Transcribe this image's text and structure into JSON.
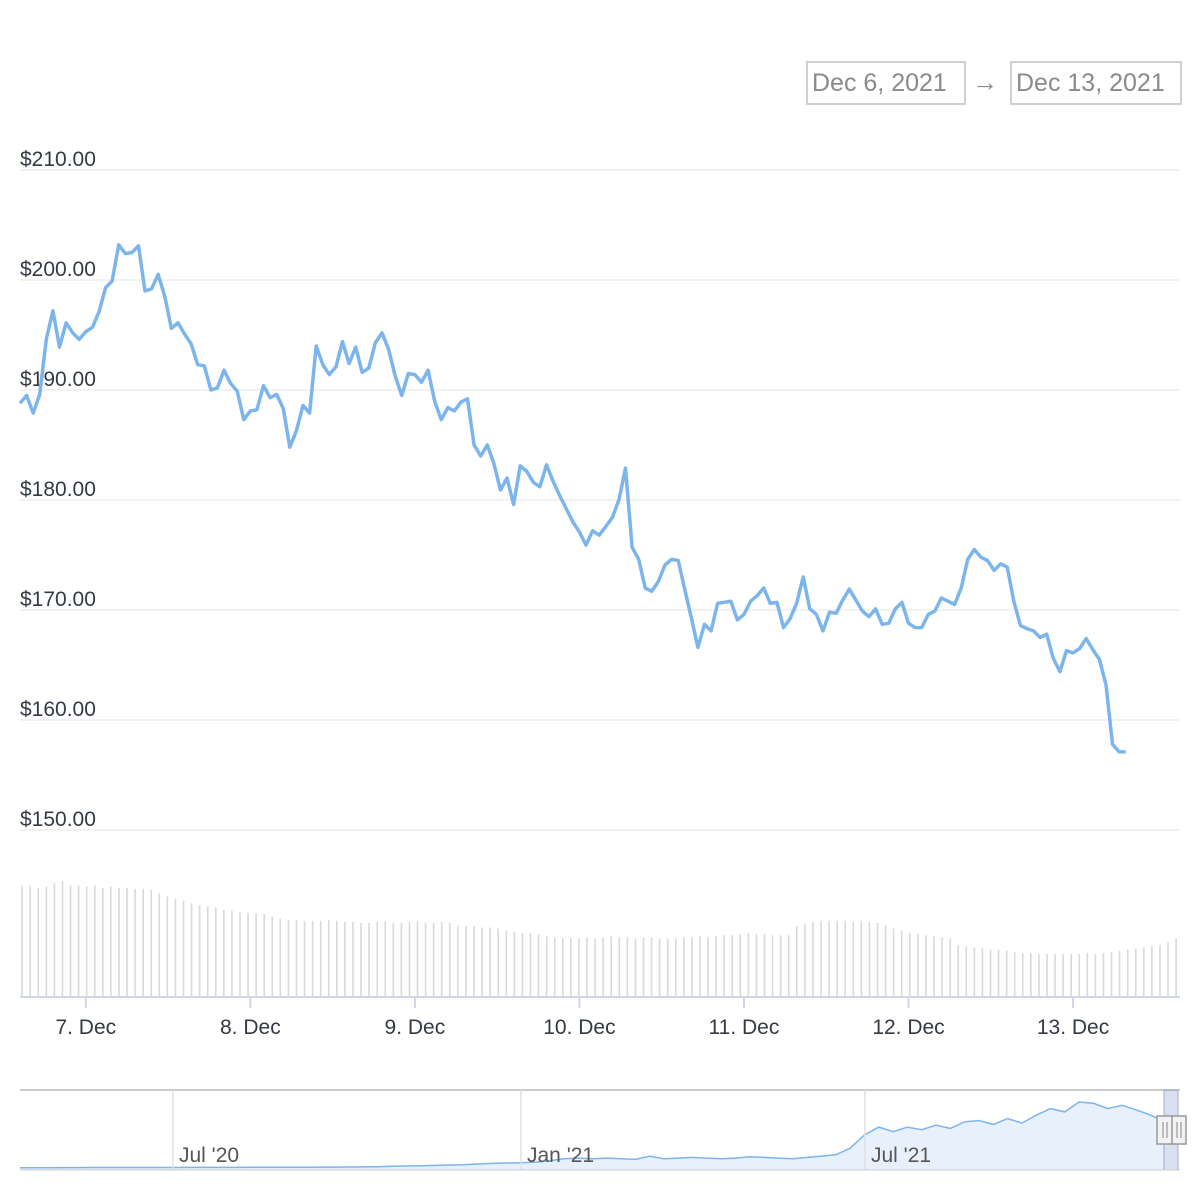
{
  "range_selector": {
    "from": "Dec 6, 2021",
    "arrow": "→",
    "to": "Dec 13, 2021"
  },
  "colors": {
    "line": "#7cb5ec",
    "grid": "#e6e6e6",
    "volume": "#d9d9d9",
    "navigator_fill": "#e8f1fb"
  },
  "chart_data": {
    "type": "line",
    "title": "",
    "xlabel": "",
    "ylabel": "",
    "ylim": [
      150,
      210
    ],
    "y_ticks": [
      "$150.00",
      "$160.00",
      "$170.00",
      "$180.00",
      "$190.00",
      "$200.00",
      "$210.00"
    ],
    "y_tick_values": [
      150,
      160,
      170,
      180,
      190,
      200,
      210
    ],
    "x_range_days": [
      6.6,
      13.65
    ],
    "x_ticks": [
      {
        "label": "7. Dec",
        "day": 7
      },
      {
        "label": "8. Dec",
        "day": 8
      },
      {
        "label": "9. Dec",
        "day": 9
      },
      {
        "label": "10. Dec",
        "day": 10
      },
      {
        "label": "11. Dec",
        "day": 11
      },
      {
        "label": "12. Dec",
        "day": 12
      },
      {
        "label": "13. Dec",
        "day": 13
      }
    ],
    "series": [
      {
        "values": [
          [
            6.6,
            188.8
          ],
          [
            6.64,
            189.5
          ],
          [
            6.68,
            187.9
          ],
          [
            6.72,
            189.6
          ],
          [
            6.76,
            194.6
          ],
          [
            6.8,
            197.2
          ],
          [
            6.84,
            193.9
          ],
          [
            6.88,
            196.1
          ],
          [
            6.92,
            195.2
          ],
          [
            6.96,
            194.6
          ],
          [
            7.0,
            195.3
          ],
          [
            7.04,
            195.7
          ],
          [
            7.08,
            197.1
          ],
          [
            7.12,
            199.3
          ],
          [
            7.16,
            199.9
          ],
          [
            7.2,
            203.2
          ],
          [
            7.24,
            202.4
          ],
          [
            7.28,
            202.5
          ],
          [
            7.32,
            203.1
          ],
          [
            7.36,
            199.0
          ],
          [
            7.4,
            199.2
          ],
          [
            7.44,
            200.5
          ],
          [
            7.48,
            198.5
          ],
          [
            7.52,
            195.6
          ],
          [
            7.56,
            196.1
          ],
          [
            7.6,
            195.1
          ],
          [
            7.64,
            194.2
          ],
          [
            7.68,
            192.3
          ],
          [
            7.72,
            192.2
          ],
          [
            7.76,
            190.0
          ],
          [
            7.8,
            190.2
          ],
          [
            7.84,
            191.8
          ],
          [
            7.88,
            190.6
          ],
          [
            7.92,
            189.9
          ],
          [
            7.96,
            187.3
          ],
          [
            8.0,
            188.1
          ],
          [
            8.04,
            188.2
          ],
          [
            8.08,
            190.4
          ],
          [
            8.12,
            189.3
          ],
          [
            8.16,
            189.6
          ],
          [
            8.2,
            188.3
          ],
          [
            8.24,
            184.8
          ],
          [
            8.28,
            186.3
          ],
          [
            8.32,
            188.6
          ],
          [
            8.36,
            187.9
          ],
          [
            8.4,
            194.0
          ],
          [
            8.44,
            192.3
          ],
          [
            8.48,
            191.4
          ],
          [
            8.52,
            192.1
          ],
          [
            8.56,
            194.4
          ],
          [
            8.6,
            192.4
          ],
          [
            8.64,
            193.9
          ],
          [
            8.68,
            191.6
          ],
          [
            8.72,
            192.0
          ],
          [
            8.76,
            194.3
          ],
          [
            8.8,
            195.2
          ],
          [
            8.84,
            193.7
          ],
          [
            8.88,
            191.3
          ],
          [
            8.92,
            189.5
          ],
          [
            8.96,
            191.5
          ],
          [
            9.0,
            191.4
          ],
          [
            9.04,
            190.7
          ],
          [
            9.08,
            191.8
          ],
          [
            9.12,
            189.0
          ],
          [
            9.16,
            187.3
          ],
          [
            9.2,
            188.4
          ],
          [
            9.24,
            188.1
          ],
          [
            9.28,
            188.9
          ],
          [
            9.32,
            189.2
          ],
          [
            9.36,
            185.0
          ],
          [
            9.4,
            184.0
          ],
          [
            9.44,
            185.0
          ],
          [
            9.48,
            183.3
          ],
          [
            9.52,
            180.9
          ],
          [
            9.56,
            182.0
          ],
          [
            9.6,
            179.6
          ],
          [
            9.64,
            183.1
          ],
          [
            9.68,
            182.6
          ],
          [
            9.72,
            181.6
          ],
          [
            9.76,
            181.2
          ],
          [
            9.8,
            183.2
          ],
          [
            9.84,
            181.7
          ],
          [
            9.88,
            180.4
          ],
          [
            9.92,
            179.2
          ],
          [
            9.96,
            178.0
          ],
          [
            10.0,
            177.1
          ],
          [
            10.04,
            175.9
          ],
          [
            10.08,
            177.2
          ],
          [
            10.12,
            176.8
          ],
          [
            10.16,
            177.6
          ],
          [
            10.2,
            178.4
          ],
          [
            10.24,
            180.0
          ],
          [
            10.28,
            182.9
          ],
          [
            10.32,
            175.7
          ],
          [
            10.36,
            174.6
          ],
          [
            10.4,
            172.0
          ],
          [
            10.44,
            171.7
          ],
          [
            10.48,
            172.6
          ],
          [
            10.52,
            174.1
          ],
          [
            10.56,
            174.6
          ],
          [
            10.6,
            174.5
          ],
          [
            10.64,
            171.9
          ],
          [
            10.68,
            169.3
          ],
          [
            10.72,
            166.6
          ],
          [
            10.76,
            168.7
          ],
          [
            10.8,
            168.1
          ],
          [
            10.84,
            170.6
          ],
          [
            10.88,
            170.7
          ],
          [
            10.92,
            170.8
          ],
          [
            10.96,
            169.1
          ],
          [
            11.0,
            169.6
          ],
          [
            11.04,
            170.8
          ],
          [
            11.08,
            171.3
          ],
          [
            11.12,
            172.0
          ],
          [
            11.16,
            170.6
          ],
          [
            11.2,
            170.7
          ],
          [
            11.24,
            168.4
          ],
          [
            11.28,
            169.2
          ],
          [
            11.32,
            170.6
          ],
          [
            11.36,
            173.0
          ],
          [
            11.4,
            170.1
          ],
          [
            11.44,
            169.6
          ],
          [
            11.48,
            168.1
          ],
          [
            11.52,
            169.8
          ],
          [
            11.56,
            169.7
          ],
          [
            11.6,
            170.9
          ],
          [
            11.64,
            171.9
          ],
          [
            11.68,
            170.9
          ],
          [
            11.72,
            169.9
          ],
          [
            11.76,
            169.4
          ],
          [
            11.8,
            170.1
          ],
          [
            11.84,
            168.7
          ],
          [
            11.88,
            168.8
          ],
          [
            11.92,
            170.1
          ],
          [
            11.96,
            170.7
          ],
          [
            12.0,
            168.8
          ],
          [
            12.04,
            168.4
          ],
          [
            12.08,
            168.4
          ],
          [
            12.12,
            169.6
          ],
          [
            12.16,
            169.9
          ],
          [
            12.2,
            171.1
          ],
          [
            12.24,
            170.8
          ],
          [
            12.28,
            170.5
          ],
          [
            12.32,
            172.0
          ],
          [
            12.36,
            174.6
          ],
          [
            12.4,
            175.5
          ],
          [
            12.44,
            174.8
          ],
          [
            12.48,
            174.5
          ],
          [
            12.52,
            173.6
          ],
          [
            12.56,
            174.2
          ],
          [
            12.6,
            173.9
          ],
          [
            12.64,
            170.8
          ],
          [
            12.68,
            168.6
          ],
          [
            12.72,
            168.3
          ],
          [
            12.76,
            168.1
          ],
          [
            12.8,
            167.5
          ],
          [
            12.84,
            167.8
          ],
          [
            12.88,
            165.6
          ],
          [
            12.92,
            164.4
          ],
          [
            12.96,
            166.3
          ],
          [
            13.0,
            166.1
          ],
          [
            13.04,
            166.5
          ],
          [
            13.08,
            167.4
          ],
          [
            13.12,
            166.4
          ],
          [
            13.16,
            165.5
          ],
          [
            13.2,
            163.2
          ],
          [
            13.24,
            157.8
          ],
          [
            13.28,
            157.1
          ],
          [
            13.32,
            157.1
          ]
        ]
      }
    ],
    "volume_bars": {
      "count": 144,
      "relative_heights": [
        1.0,
        1.0,
        0.98,
        0.99,
        1.02,
        1.04,
        1.0,
        1.0,
        0.99,
        1.0,
        0.98,
        0.99,
        0.98,
        0.98,
        0.97,
        0.97,
        0.96,
        0.93,
        0.9,
        0.88,
        0.86,
        0.84,
        0.82,
        0.81,
        0.8,
        0.78,
        0.77,
        0.76,
        0.75,
        0.75,
        0.74,
        0.72,
        0.7,
        0.69,
        0.69,
        0.68,
        0.68,
        0.68,
        0.69,
        0.68,
        0.67,
        0.67,
        0.66,
        0.66,
        0.67,
        0.68,
        0.66,
        0.66,
        0.67,
        0.68,
        0.66,
        0.66,
        0.67,
        0.66,
        0.64,
        0.63,
        0.63,
        0.62,
        0.62,
        0.61,
        0.59,
        0.58,
        0.57,
        0.57,
        0.56,
        0.54,
        0.53,
        0.52,
        0.52,
        0.52,
        0.53,
        0.52,
        0.53,
        0.54,
        0.53,
        0.53,
        0.52,
        0.53,
        0.53,
        0.52,
        0.52,
        0.52,
        0.53,
        0.53,
        0.54,
        0.53,
        0.54,
        0.55,
        0.55,
        0.56,
        0.57,
        0.56,
        0.56,
        0.55,
        0.55,
        0.55,
        0.63,
        0.65,
        0.67,
        0.68,
        0.68,
        0.68,
        0.68,
        0.67,
        0.68,
        0.67,
        0.66,
        0.64,
        0.61,
        0.59,
        0.57,
        0.56,
        0.55,
        0.54,
        0.53,
        0.52,
        0.46,
        0.45,
        0.44,
        0.43,
        0.42,
        0.42,
        0.41,
        0.4,
        0.39,
        0.39,
        0.38,
        0.38,
        0.38,
        0.38,
        0.38,
        0.38,
        0.39,
        0.38,
        0.39,
        0.4,
        0.41,
        0.42,
        0.43,
        0.44,
        0.45,
        0.46,
        0.49,
        0.52
      ]
    },
    "navigator": {
      "x_ticks": [
        "Jul '20",
        "Jan '21",
        "Jul '21"
      ],
      "series_values": [
        0.005,
        0.005,
        0.005,
        0.006,
        0.006,
        0.007,
        0.007,
        0.007,
        0.008,
        0.008,
        0.008,
        0.008,
        0.009,
        0.009,
        0.009,
        0.009,
        0.01,
        0.01,
        0.011,
        0.012,
        0.012,
        0.013,
        0.014,
        0.015,
        0.017,
        0.02,
        0.025,
        0.03,
        0.035,
        0.04,
        0.045,
        0.05,
        0.06,
        0.07,
        0.075,
        0.08,
        0.09,
        0.11,
        0.14,
        0.15,
        0.14,
        0.15,
        0.14,
        0.13,
        0.18,
        0.14,
        0.15,
        0.16,
        0.15,
        0.14,
        0.15,
        0.17,
        0.16,
        0.15,
        0.14,
        0.16,
        0.18,
        0.2,
        0.3,
        0.5,
        0.62,
        0.55,
        0.62,
        0.58,
        0.65,
        0.6,
        0.7,
        0.72,
        0.66,
        0.75,
        0.68,
        0.8,
        0.9,
        0.85,
        1.0,
        0.98,
        0.9,
        0.95,
        0.88,
        0.8,
        0.7
      ]
    }
  }
}
